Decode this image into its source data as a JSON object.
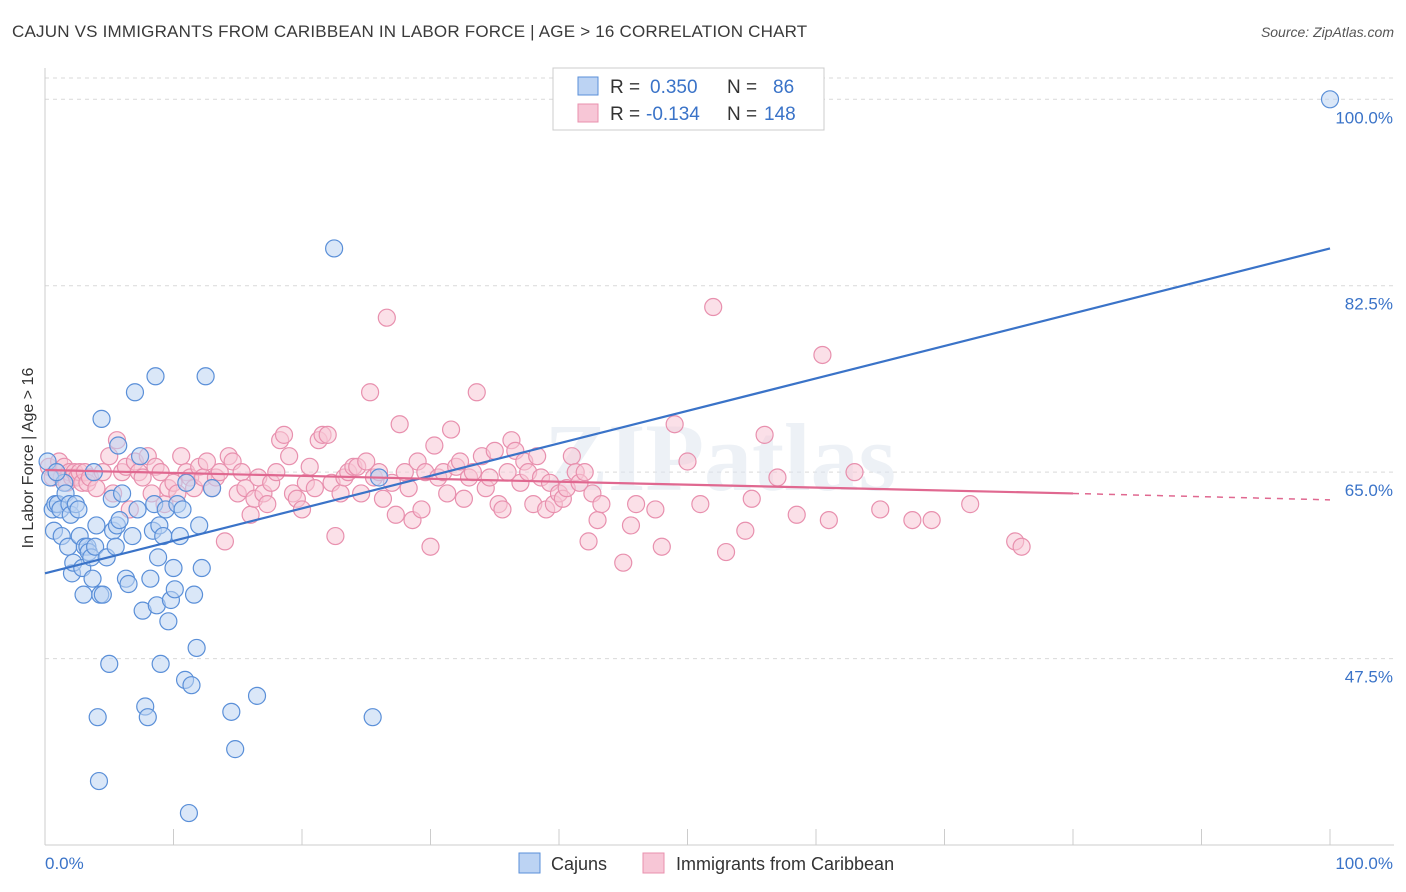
{
  "header": {
    "title": "CAJUN VS IMMIGRANTS FROM CARIBBEAN IN LABOR FORCE | AGE > 16 CORRELATION CHART",
    "source": "Source: ZipAtlas.com"
  },
  "watermark": "ZIPatlas",
  "legend_top": {
    "rows": [
      {
        "r_label": "R =",
        "r_value": "0.350",
        "n_label": "N =",
        "n_value": "86"
      },
      {
        "r_label": "R =",
        "r_value": "-0.134",
        "n_label": "N =",
        "n_value": "148"
      }
    ]
  },
  "legend_bottom": {
    "items": [
      "Cajuns",
      "Immigrants from Caribbean"
    ]
  },
  "colors": {
    "blue": "#3a73c8",
    "blue_fill": "#bcd3f3",
    "blue_stroke": "#5a8fd8",
    "pink": "#e06890",
    "pink_fill": "#f7c6d6",
    "pink_stroke": "#e890ae",
    "grid": "#d9d9d9"
  },
  "chart_data": {
    "type": "scatter",
    "title": "CAJUN VS IMMIGRANTS FROM CARIBBEAN IN LABOR FORCE | AGE > 16 CORRELATION CHART",
    "xlabel": "",
    "ylabel": "In Labor Force | Age > 16",
    "xlim": [
      0,
      100
    ],
    "ylim": [
      30,
      102
    ],
    "x_tick_labels": [
      "0.0%",
      "100.0%"
    ],
    "y_ticks": [
      47.5,
      65.0,
      82.5,
      100.0
    ],
    "y_tick_labels": [
      "47.5%",
      "65.0%",
      "82.5%",
      "100.0%"
    ],
    "grid": true,
    "legend_position": "top-center",
    "series": [
      {
        "name": "Cajuns",
        "R": 0.35,
        "N": 86,
        "trend": {
          "x0": 0,
          "y0": 55.5,
          "x1": 100,
          "y1": 86.0
        },
        "points": [
          [
            0.2,
            66.0
          ],
          [
            0.4,
            64.5
          ],
          [
            0.6,
            61.5
          ],
          [
            0.7,
            59.5
          ],
          [
            0.8,
            62.0
          ],
          [
            1.0,
            62.0
          ],
          [
            1.2,
            61.5
          ],
          [
            1.3,
            59.0
          ],
          [
            1.5,
            64.0
          ],
          [
            1.6,
            63.0
          ],
          [
            1.8,
            58.0
          ],
          [
            1.9,
            62.0
          ],
          [
            2.0,
            61.0
          ],
          [
            2.1,
            55.5
          ],
          [
            2.2,
            56.5
          ],
          [
            2.4,
            62.0
          ],
          [
            2.6,
            61.5
          ],
          [
            2.7,
            59.0
          ],
          [
            2.9,
            56.0
          ],
          [
            3.0,
            53.5
          ],
          [
            3.1,
            58.0
          ],
          [
            3.3,
            58.0
          ],
          [
            3.4,
            57.5
          ],
          [
            3.6,
            57.0
          ],
          [
            3.7,
            55.0
          ],
          [
            3.9,
            58.0
          ],
          [
            4.0,
            60.0
          ],
          [
            4.1,
            42.0
          ],
          [
            4.2,
            36.0
          ],
          [
            4.3,
            53.5
          ],
          [
            4.4,
            70.0
          ],
          [
            4.5,
            53.5
          ],
          [
            4.8,
            57.0
          ],
          [
            5.0,
            47.0
          ],
          [
            5.2,
            62.5
          ],
          [
            5.3,
            59.5
          ],
          [
            5.5,
            58.0
          ],
          [
            5.6,
            60.0
          ],
          [
            5.7,
            67.5
          ],
          [
            5.8,
            60.5
          ],
          [
            6.0,
            63.0
          ],
          [
            6.3,
            55.0
          ],
          [
            6.5,
            54.5
          ],
          [
            6.8,
            59.0
          ],
          [
            7.0,
            72.5
          ],
          [
            7.2,
            61.5
          ],
          [
            7.4,
            66.5
          ],
          [
            7.6,
            52.0
          ],
          [
            7.8,
            43.0
          ],
          [
            8.0,
            42.0
          ],
          [
            8.2,
            55.0
          ],
          [
            8.4,
            59.5
          ],
          [
            8.5,
            62.0
          ],
          [
            8.6,
            74.0
          ],
          [
            8.7,
            52.5
          ],
          [
            8.8,
            57.0
          ],
          [
            8.9,
            60.0
          ],
          [
            9.0,
            47.0
          ],
          [
            9.2,
            59.0
          ],
          [
            9.4,
            61.5
          ],
          [
            9.6,
            51.0
          ],
          [
            9.8,
            53.0
          ],
          [
            10.0,
            56.0
          ],
          [
            10.1,
            54.0
          ],
          [
            10.3,
            62.0
          ],
          [
            10.5,
            59.0
          ],
          [
            10.7,
            61.5
          ],
          [
            10.9,
            45.5
          ],
          [
            11.0,
            64.0
          ],
          [
            11.2,
            33.0
          ],
          [
            11.4,
            45.0
          ],
          [
            11.6,
            53.5
          ],
          [
            11.8,
            48.5
          ],
          [
            12.0,
            60.0
          ],
          [
            12.2,
            56.0
          ],
          [
            12.5,
            74.0
          ],
          [
            13.0,
            63.5
          ],
          [
            14.5,
            42.5
          ],
          [
            14.8,
            39.0
          ],
          [
            16.5,
            44.0
          ],
          [
            22.5,
            86.0
          ],
          [
            26.0,
            64.5
          ],
          [
            25.5,
            42.0
          ],
          [
            100.0,
            100.0
          ],
          [
            0.9,
            65.0
          ],
          [
            3.8,
            65.0
          ]
        ]
      },
      {
        "name": "Immigrants from Caribbean",
        "R": -0.134,
        "N": 148,
        "trend": {
          "x0": 0,
          "y0": 65.2,
          "x1": 80,
          "y1": 63.0,
          "dash_to_x": 100,
          "dash_to_y": 62.4
        },
        "points": [
          [
            0.3,
            65.5
          ],
          [
            0.6,
            64.5
          ],
          [
            0.9,
            65.0
          ],
          [
            1.1,
            66.0
          ],
          [
            1.3,
            64.5
          ],
          [
            1.5,
            65.5
          ],
          [
            1.7,
            64.0
          ],
          [
            1.9,
            65.0
          ],
          [
            2.1,
            64.5
          ],
          [
            2.3,
            65.0
          ],
          [
            2.5,
            64.5
          ],
          [
            2.7,
            65.0
          ],
          [
            2.9,
            64.0
          ],
          [
            3.1,
            65.0
          ],
          [
            3.3,
            64.0
          ],
          [
            3.5,
            64.5
          ],
          [
            4.0,
            63.5
          ],
          [
            4.5,
            65.0
          ],
          [
            5.0,
            66.5
          ],
          [
            5.3,
            63.0
          ],
          [
            5.6,
            68.0
          ],
          [
            6.0,
            65.0
          ],
          [
            6.3,
            65.5
          ],
          [
            6.6,
            61.5
          ],
          [
            7.0,
            66.0
          ],
          [
            7.3,
            65.0
          ],
          [
            7.6,
            64.5
          ],
          [
            8.0,
            66.5
          ],
          [
            8.3,
            63.0
          ],
          [
            8.6,
            65.5
          ],
          [
            9.0,
            65.0
          ],
          [
            9.3,
            62.0
          ],
          [
            9.6,
            63.5
          ],
          [
            10.0,
            64.0
          ],
          [
            10.3,
            63.0
          ],
          [
            10.6,
            66.5
          ],
          [
            11.0,
            65.0
          ],
          [
            11.3,
            64.5
          ],
          [
            11.6,
            63.5
          ],
          [
            12.0,
            65.5
          ],
          [
            12.3,
            64.5
          ],
          [
            12.6,
            66.0
          ],
          [
            13.0,
            63.5
          ],
          [
            13.3,
            64.5
          ],
          [
            13.6,
            65.0
          ],
          [
            14.0,
            58.5
          ],
          [
            14.3,
            66.5
          ],
          [
            14.6,
            66.0
          ],
          [
            15.0,
            63.0
          ],
          [
            15.3,
            65.0
          ],
          [
            15.6,
            63.5
          ],
          [
            16.0,
            61.0
          ],
          [
            16.3,
            62.5
          ],
          [
            16.6,
            64.5
          ],
          [
            17.0,
            63.0
          ],
          [
            17.3,
            62.0
          ],
          [
            17.6,
            64.0
          ],
          [
            18.0,
            65.0
          ],
          [
            18.3,
            68.0
          ],
          [
            18.6,
            68.5
          ],
          [
            19.0,
            66.5
          ],
          [
            19.3,
            63.0
          ],
          [
            19.6,
            62.5
          ],
          [
            20.0,
            61.5
          ],
          [
            20.3,
            64.0
          ],
          [
            20.6,
            65.5
          ],
          [
            21.0,
            63.5
          ],
          [
            21.3,
            68.0
          ],
          [
            21.6,
            68.5
          ],
          [
            22.0,
            68.5
          ],
          [
            22.3,
            64.0
          ],
          [
            22.6,
            59.0
          ],
          [
            23.0,
            63.0
          ],
          [
            23.3,
            64.5
          ],
          [
            23.6,
            65.0
          ],
          [
            24.0,
            65.5
          ],
          [
            24.3,
            65.5
          ],
          [
            24.6,
            63.0
          ],
          [
            25.0,
            66.0
          ],
          [
            25.3,
            72.5
          ],
          [
            25.6,
            64.5
          ],
          [
            26.0,
            65.0
          ],
          [
            26.3,
            62.5
          ],
          [
            26.6,
            79.5
          ],
          [
            27.0,
            64.0
          ],
          [
            27.3,
            61.0
          ],
          [
            27.6,
            69.5
          ],
          [
            28.0,
            65.0
          ],
          [
            28.3,
            63.5
          ],
          [
            28.6,
            60.5
          ],
          [
            29.0,
            66.0
          ],
          [
            29.3,
            61.5
          ],
          [
            29.6,
            65.0
          ],
          [
            30.0,
            58.0
          ],
          [
            30.3,
            67.5
          ],
          [
            30.6,
            64.5
          ],
          [
            31.0,
            65.0
          ],
          [
            31.3,
            63.0
          ],
          [
            31.6,
            69.0
          ],
          [
            32.0,
            65.5
          ],
          [
            32.3,
            66.0
          ],
          [
            32.6,
            62.5
          ],
          [
            33.0,
            64.5
          ],
          [
            33.3,
            65.0
          ],
          [
            33.6,
            72.5
          ],
          [
            34.0,
            66.5
          ],
          [
            34.3,
            63.5
          ],
          [
            34.6,
            64.5
          ],
          [
            35.0,
            67.0
          ],
          [
            35.3,
            62.0
          ],
          [
            35.6,
            61.5
          ],
          [
            36.0,
            65.0
          ],
          [
            36.3,
            68.0
          ],
          [
            36.6,
            67.0
          ],
          [
            37.0,
            64.0
          ],
          [
            37.3,
            66.0
          ],
          [
            37.6,
            65.0
          ],
          [
            38.0,
            62.0
          ],
          [
            38.3,
            66.5
          ],
          [
            38.6,
            64.5
          ],
          [
            39.0,
            61.5
          ],
          [
            39.3,
            64.0
          ],
          [
            39.6,
            62.0
          ],
          [
            40.0,
            63.0
          ],
          [
            40.3,
            62.5
          ],
          [
            40.6,
            63.5
          ],
          [
            41.0,
            66.5
          ],
          [
            41.3,
            65.0
          ],
          [
            41.6,
            64.0
          ],
          [
            42.0,
            65.0
          ],
          [
            42.3,
            58.5
          ],
          [
            42.6,
            63.0
          ],
          [
            43.0,
            60.5
          ],
          [
            43.3,
            62.0
          ],
          [
            45.0,
            56.5
          ],
          [
            45.6,
            60.0
          ],
          [
            46.0,
            62.0
          ],
          [
            47.5,
            61.5
          ],
          [
            48.0,
            58.0
          ],
          [
            49.0,
            69.5
          ],
          [
            50.0,
            66.0
          ],
          [
            51.0,
            62.0
          ],
          [
            52.0,
            80.5
          ],
          [
            53.0,
            57.5
          ],
          [
            54.5,
            59.5
          ],
          [
            55.0,
            62.5
          ],
          [
            56.0,
            68.5
          ],
          [
            57.0,
            64.5
          ],
          [
            58.5,
            61.0
          ],
          [
            60.5,
            76.0
          ],
          [
            61.0,
            60.5
          ],
          [
            63.0,
            65.0
          ],
          [
            65.0,
            61.5
          ],
          [
            67.5,
            60.5
          ],
          [
            72.0,
            62.0
          ],
          [
            75.5,
            58.5
          ],
          [
            76.0,
            58.0
          ],
          [
            69.0,
            60.5
          ]
        ]
      }
    ]
  }
}
